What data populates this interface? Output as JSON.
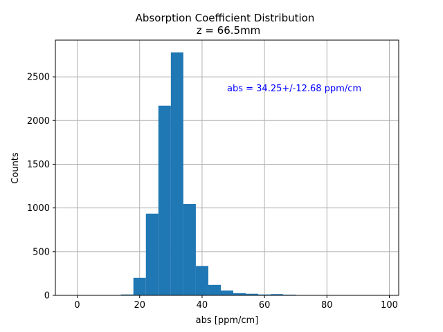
{
  "chart_data": {
    "type": "bar",
    "title": "Absorption Coefficient Distribution",
    "subtitle": "z = 66.5mm",
    "xlabel": "abs [ppm/cm]",
    "ylabel": "Counts",
    "annotation": "abs = 34.25+/-12.68 ppm/cm",
    "xlim": [
      -7,
      103
    ],
    "ylim": [
      0,
      2920
    ],
    "xticks": [
      0,
      20,
      40,
      60,
      80,
      100
    ],
    "yticks": [
      0,
      500,
      1000,
      1500,
      2000,
      2500
    ],
    "grid": true,
    "bar_color": "#1f77b4",
    "annotation_color": "#0000ff",
    "bins": [
      {
        "x0": 14,
        "x1": 18,
        "count": 10
      },
      {
        "x0": 18,
        "x1": 22,
        "count": 200
      },
      {
        "x0": 22,
        "x1": 26,
        "count": 935
      },
      {
        "x0": 26,
        "x1": 30,
        "count": 2170
      },
      {
        "x0": 30,
        "x1": 34,
        "count": 2780
      },
      {
        "x0": 34,
        "x1": 38,
        "count": 1045
      },
      {
        "x0": 38,
        "x1": 42,
        "count": 335
      },
      {
        "x0": 42,
        "x1": 46,
        "count": 120
      },
      {
        "x0": 46,
        "x1": 50,
        "count": 55
      },
      {
        "x0": 50,
        "x1": 54,
        "count": 25
      },
      {
        "x0": 54,
        "x1": 58,
        "count": 18
      },
      {
        "x0": 58,
        "x1": 62,
        "count": 10
      },
      {
        "x0": 62,
        "x1": 66,
        "count": 14
      },
      {
        "x0": 66,
        "x1": 70,
        "count": 8
      },
      {
        "x0": 70,
        "x1": 74,
        "count": 4
      },
      {
        "x0": 74,
        "x1": 78,
        "count": 2
      }
    ]
  }
}
